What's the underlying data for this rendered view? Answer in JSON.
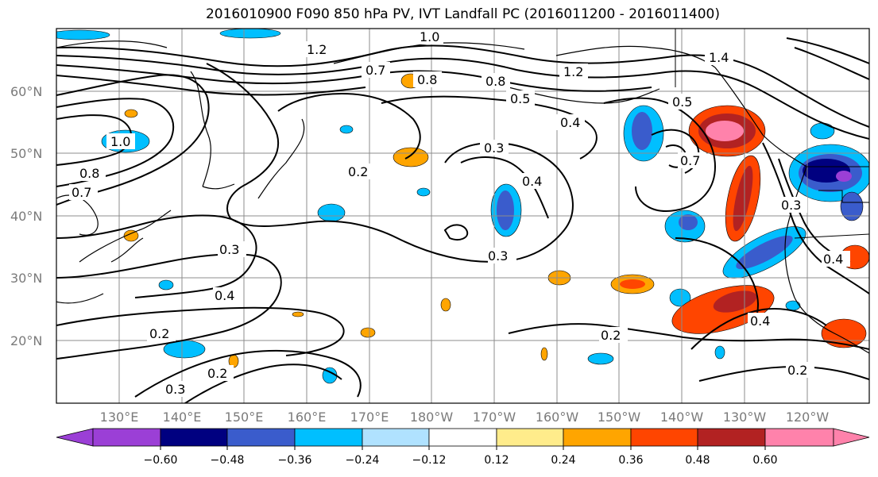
{
  "title": "2016010900 F090 850 hPa PV, IVT Landfall PC (2016011200 - 2016011400)",
  "latitude_labels": [
    "60°N",
    "50°N",
    "40°N",
    "30°N",
    "20°N"
  ],
  "longitude_labels": [
    "130°E",
    "140°E",
    "150°E",
    "160°E",
    "170°E",
    "180°W",
    "170°W",
    "160°W",
    "150°W",
    "140°W",
    "130°W",
    "120°W"
  ],
  "contour_labels": [
    "1.0",
    "1.2",
    "0.7",
    "0.8",
    "0.8",
    "0.5",
    "1.2",
    "1.4",
    "0.4",
    "0.3",
    "0.5",
    "1.0",
    "0.7",
    "0.8",
    "0.2",
    "0.4",
    "0.3",
    "0.3",
    "0.4",
    "0.2",
    "0.2",
    "0.3",
    "0.2",
    "0.7",
    "0.3",
    "0.4",
    "0.2",
    "0.4"
  ],
  "colorbar": {
    "tick_labels": [
      "−0.60",
      "−0.48",
      "−0.36",
      "−0.24",
      "−0.12",
      "0.12",
      "0.24",
      "0.36",
      "0.48",
      "0.60"
    ],
    "colors": [
      "#9b3fd6",
      "#000080",
      "#3a5ccc",
      "#00bfff",
      "#b0e2ff",
      "#ffffff",
      "#ffec8b",
      "#ffa500",
      "#ff4500",
      "#b22222",
      "#ff82ab"
    ]
  }
}
